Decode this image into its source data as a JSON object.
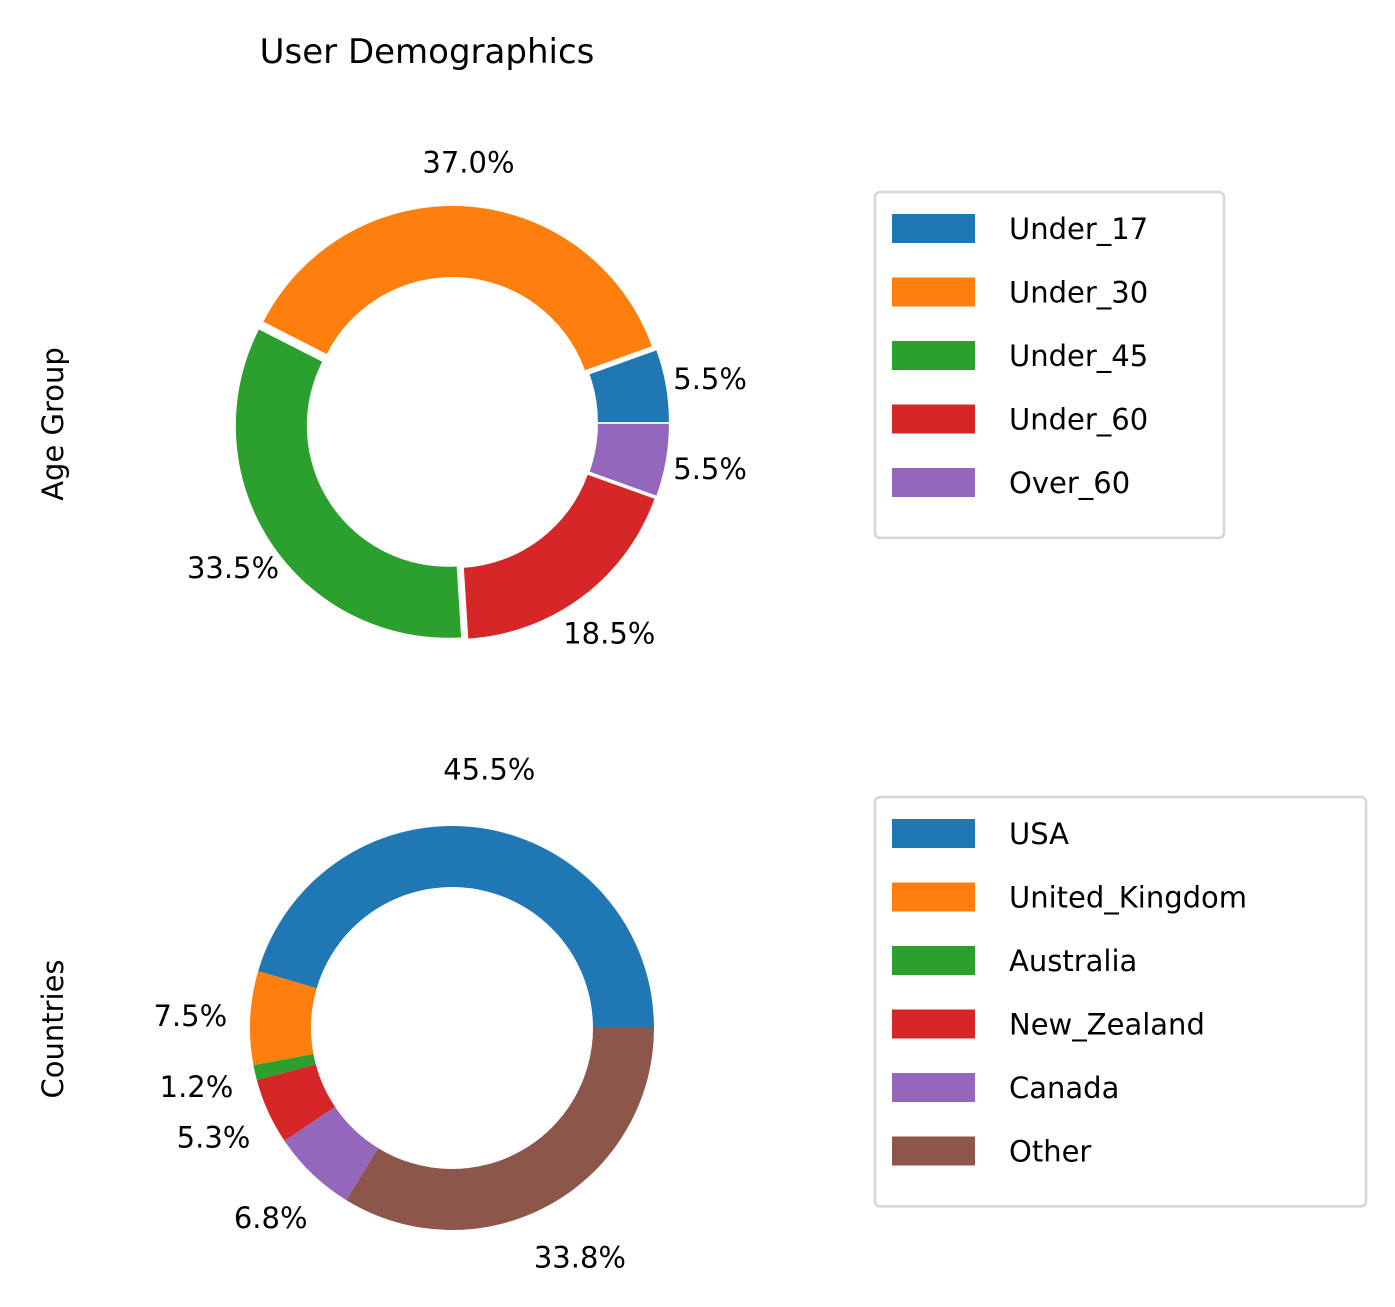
{
  "figure": {
    "title": "User Demographics"
  },
  "chart_data": [
    {
      "type": "donut",
      "ylabel": "Age Group",
      "categories": [
        "Under_17",
        "Under_30",
        "Under_45",
        "Under_60",
        "Over_60"
      ],
      "values": [
        5.5,
        37.0,
        33.5,
        18.5,
        5.5
      ],
      "labels": [
        "5.5%",
        "37.0%",
        "33.5%",
        "18.5%",
        "5.5%"
      ],
      "colors": [
        "#1f77b4",
        "#ff7f0e",
        "#2ca02c",
        "#d62728",
        "#9467bd"
      ],
      "exploded": true,
      "start_angle": 0,
      "direction": "counterclockwise",
      "legend": {
        "position": "right"
      }
    },
    {
      "type": "donut",
      "ylabel": "Countries",
      "categories": [
        "USA",
        "United_Kingdom",
        "Australia",
        "New_Zealand",
        "Canada",
        "Other"
      ],
      "values": [
        45.5,
        7.5,
        1.2,
        5.3,
        6.8,
        33.8
      ],
      "labels": [
        "45.5%",
        "7.5%",
        "1.2%",
        "5.3%",
        "6.8%",
        "33.8%"
      ],
      "colors": [
        "#1f77b4",
        "#ff7f0e",
        "#2ca02c",
        "#d62728",
        "#9467bd",
        "#8c564b"
      ],
      "exploded": false,
      "start_angle": 0,
      "direction": "counterclockwise",
      "legend": {
        "position": "right"
      }
    }
  ]
}
